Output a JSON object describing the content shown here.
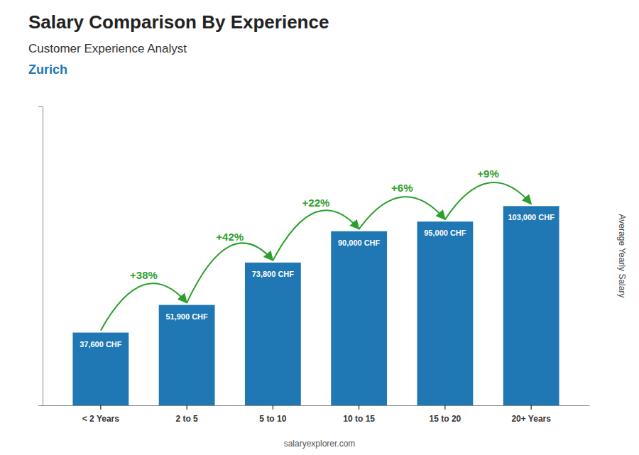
{
  "chart_data": {
    "type": "bar",
    "title": "Salary Comparison By Experience",
    "subtitle": "Customer Experience Analyst",
    "city": "Zurich",
    "ylabel": "Average Yearly Salary",
    "categories": [
      "< 2 Years",
      "2 to 5",
      "5 to 10",
      "10 to 15",
      "15 to 20",
      "20+ Years"
    ],
    "values": [
      37600,
      51900,
      73800,
      90000,
      95000,
      103000
    ],
    "data_labels": true,
    "value_labels": [
      "37,600 CHF",
      "51,900 CHF",
      "73,800 CHF",
      "90,000 CHF",
      "95,000 CHF",
      "103,000 CHF"
    ],
    "annotations": [
      "+38%",
      "+42%",
      "+22%",
      "+6%",
      "+9%"
    ],
    "ylim": [
      0,
      154500
    ],
    "yticks": [],
    "tick_labels": "x",
    "grid": false,
    "source": "salaryexplorer.com"
  }
}
